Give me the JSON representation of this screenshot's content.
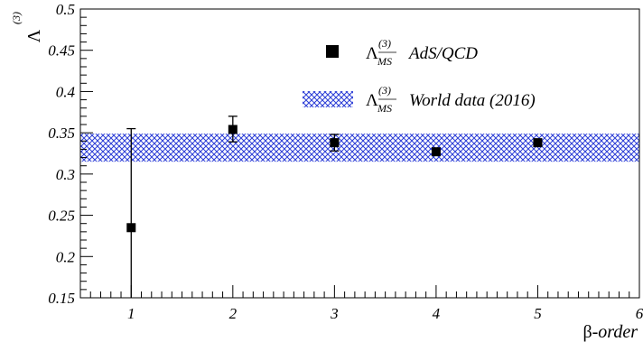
{
  "chart_data": {
    "type": "scatter",
    "xlim": [
      0.5,
      6
    ],
    "ylim": [
      0.15,
      0.5
    ],
    "x_ticks": [
      1,
      2,
      3,
      4,
      5,
      6
    ],
    "y_ticks": [
      0.15,
      0.2,
      0.25,
      0.3,
      0.35,
      0.4,
      0.45,
      0.5
    ],
    "y_tick_labels": [
      "0.15",
      "0.2",
      "0.25",
      "0.3",
      "0.35",
      "0.4",
      "0.45",
      "0.5"
    ],
    "x_tick_labels": [
      "1",
      "2",
      "3",
      "4",
      "5",
      "6"
    ],
    "xlabel_prefix": "β-",
    "xlabel_italic": "order",
    "ylabel_symbol": "Λ",
    "ylabel_superscript": "(3)",
    "grid": false,
    "legend_position": "top-right",
    "series": [
      {
        "name": "AdS/QCD",
        "legend_symbol": "Λ",
        "legend_superscript": "(3)",
        "legend_subscript": "MS",
        "marker": "square",
        "color": "#000000",
        "points": [
          {
            "x": 1,
            "y": 0.235,
            "err_low": 0.235,
            "err_high": 0.355
          },
          {
            "x": 2,
            "y": 0.354,
            "err_low": 0.339,
            "err_high": 0.37
          },
          {
            "x": 3,
            "y": 0.338,
            "err_low": 0.328,
            "err_high": 0.348
          },
          {
            "x": 4,
            "y": 0.327,
            "err_low": 0.327,
            "err_high": 0.327
          },
          {
            "x": 5,
            "y": 0.338,
            "err_low": 0.338,
            "err_high": 0.338
          }
        ]
      },
      {
        "name": "World data (2016)",
        "legend_symbol": "Λ",
        "legend_superscript": "(3)",
        "legend_subscript": "MS",
        "type": "band",
        "color": "#2a3cd6",
        "y_low": 0.315,
        "y_high": 0.349
      }
    ]
  }
}
